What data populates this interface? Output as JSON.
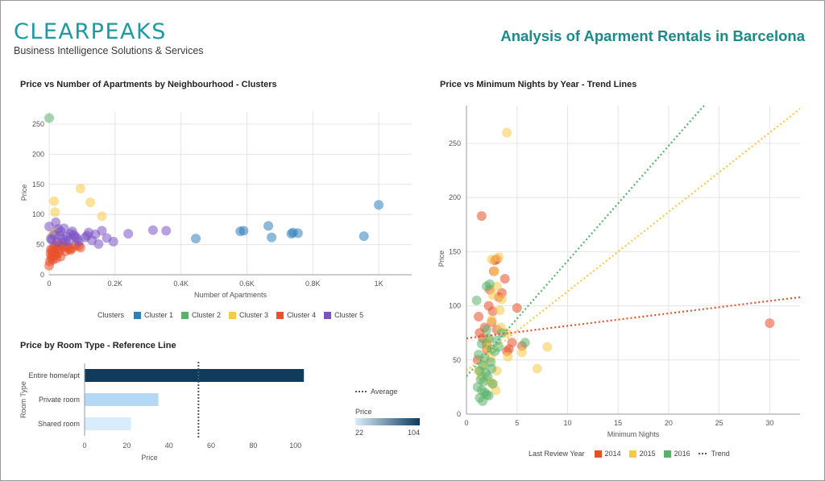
{
  "header": {
    "logo_text": "CLEARPEAKS",
    "logo_tagline": "Business Intelligence Solutions & Services",
    "dashboard_title": "Analysis of Aparment Rentals in Barcelona"
  },
  "colors": {
    "cluster1": "#2f7fbc",
    "cluster2": "#59b26a",
    "cluster3": "#f6c94b",
    "cluster4": "#e8502a",
    "cluster5": "#7b54c4",
    "y2014": "#e8502a",
    "y2015": "#f6c94b",
    "y2016": "#59b26a",
    "bar_dark": "#0f3b5c",
    "bar_light": "#b4d9f4",
    "bar_lighter": "#d9ecfb"
  },
  "chart_data": [
    {
      "type": "scatter",
      "title": "Price vs Number of Apartments by Neighbourhood - Clusters",
      "xlabel": "Number of Apartments",
      "ylabel": "Price",
      "xlim": [
        0,
        1100
      ],
      "ylim": [
        0,
        270
      ],
      "xticks": [
        0,
        200,
        400,
        600,
        800,
        1000
      ],
      "xtick_labels": [
        "0",
        "0.2K",
        "0.4K",
        "0.6K",
        "0.8K",
        "1K"
      ],
      "yticks": [
        0,
        50,
        100,
        150,
        200,
        250
      ],
      "legend_title": "Clusters",
      "series": [
        {
          "name": "Cluster 1",
          "color_key": "cluster1",
          "points": [
            [
              445,
              60
            ],
            [
              580,
              72
            ],
            [
              590,
              73
            ],
            [
              665,
              81
            ],
            [
              675,
              62
            ],
            [
              735,
              68
            ],
            [
              740,
              70
            ],
            [
              755,
              69
            ],
            [
              955,
              64
            ],
            [
              1000,
              116
            ]
          ]
        },
        {
          "name": "Cluster 2",
          "color_key": "cluster2",
          "points": [
            [
              0,
              260
            ]
          ]
        },
        {
          "name": "Cluster 3",
          "color_key": "cluster3",
          "points": [
            [
              10,
              66
            ],
            [
              15,
              122
            ],
            [
              18,
              104
            ],
            [
              95,
              143
            ],
            [
              125,
              120
            ],
            [
              160,
              97
            ],
            [
              22,
              72
            ]
          ]
        },
        {
          "name": "Cluster 4",
          "color_key": "cluster4",
          "points": [
            [
              0,
              15
            ],
            [
              2,
              22
            ],
            [
              4,
              35
            ],
            [
              5,
              42
            ],
            [
              6,
              28
            ],
            [
              8,
              40
            ],
            [
              10,
              31
            ],
            [
              12,
              25
            ],
            [
              14,
              45
            ],
            [
              16,
              38
            ],
            [
              18,
              50
            ],
            [
              20,
              33
            ],
            [
              22,
              27
            ],
            [
              25,
              44
            ],
            [
              28,
              36
            ],
            [
              30,
              48
            ],
            [
              32,
              41
            ],
            [
              35,
              30
            ],
            [
              40,
              52
            ],
            [
              45,
              46
            ],
            [
              50,
              39
            ],
            [
              55,
              47
            ],
            [
              60,
              43
            ],
            [
              65,
              41
            ],
            [
              70,
              44
            ],
            [
              80,
              49
            ],
            [
              90,
              48
            ],
            [
              95,
              45
            ]
          ]
        },
        {
          "name": "Cluster 5",
          "color_key": "cluster5",
          "points": [
            [
              0,
              80
            ],
            [
              5,
              60
            ],
            [
              8,
              58
            ],
            [
              15,
              66
            ],
            [
              20,
              87
            ],
            [
              25,
              54
            ],
            [
              28,
              76
            ],
            [
              32,
              65
            ],
            [
              35,
              72
            ],
            [
              40,
              60
            ],
            [
              45,
              77
            ],
            [
              50,
              55
            ],
            [
              55,
              63
            ],
            [
              60,
              57
            ],
            [
              65,
              68
            ],
            [
              70,
              72
            ],
            [
              75,
              66
            ],
            [
              80,
              63
            ],
            [
              85,
              60
            ],
            [
              90,
              55
            ],
            [
              110,
              62
            ],
            [
              115,
              65
            ],
            [
              120,
              70
            ],
            [
              130,
              57
            ],
            [
              140,
              67
            ],
            [
              150,
              51
            ],
            [
              160,
              73
            ],
            [
              175,
              61
            ],
            [
              195,
              55
            ],
            [
              240,
              68
            ],
            [
              315,
              74
            ],
            [
              355,
              73
            ]
          ]
        }
      ]
    },
    {
      "type": "scatter",
      "title": "Price vs Minimum Nights by Year - Trend Lines",
      "xlabel": "Minimum Nights",
      "ylabel": "Price",
      "xlim": [
        0,
        33
      ],
      "ylim": [
        0,
        285
      ],
      "xticks": [
        0,
        5,
        10,
        15,
        20,
        25,
        30
      ],
      "yticks": [
        0,
        50,
        100,
        150,
        200,
        250
      ],
      "legend_title": "Last Review Year",
      "trend_label": "Trend",
      "series": [
        {
          "name": "2014",
          "color_key": "y2014",
          "points": [
            [
              1.5,
              183
            ],
            [
              2,
              65
            ],
            [
              2.2,
              100
            ],
            [
              2.3,
              115
            ],
            [
              2.5,
              85
            ],
            [
              2.8,
              142
            ],
            [
              3.0,
              143
            ],
            [
              2.6,
              95
            ],
            [
              3.2,
              108
            ],
            [
              3.5,
              112
            ],
            [
              3.8,
              125
            ],
            [
              4.0,
              58
            ],
            [
              4.2,
              60
            ],
            [
              5.0,
              98
            ],
            [
              5.5,
              63
            ],
            [
              1.2,
              90
            ],
            [
              1.8,
              80
            ],
            [
              1.3,
              75
            ],
            [
              2.0,
              60
            ],
            [
              1.6,
              70
            ],
            [
              1.1,
              50
            ],
            [
              30,
              84
            ],
            [
              3.0,
              78
            ],
            [
              4.5,
              66
            ],
            [
              2.7,
              132
            ]
          ],
          "trend": [
            [
              0,
              70
            ],
            [
              33,
              108
            ]
          ]
        },
        {
          "name": "2015",
          "color_key": "y2015",
          "points": [
            [
              4,
              260
            ],
            [
              2.5,
              143
            ],
            [
              3.2,
              145
            ],
            [
              2.8,
              132
            ],
            [
              2.6,
              110
            ],
            [
              3.0,
              118
            ],
            [
              3.5,
              106
            ],
            [
              3.3,
              96
            ],
            [
              2.5,
              87
            ],
            [
              3.4,
              80
            ],
            [
              4.0,
              75
            ],
            [
              2.2,
              68
            ],
            [
              2.0,
              62
            ],
            [
              8.0,
              62
            ],
            [
              7,
              42
            ],
            [
              5.5,
              57
            ],
            [
              2.3,
              30
            ],
            [
              2.6,
              28
            ],
            [
              3.0,
              40
            ],
            [
              2.4,
              52
            ],
            [
              1.8,
              45
            ],
            [
              1.5,
              35
            ],
            [
              1.2,
              40
            ],
            [
              2.9,
              22
            ],
            [
              4.1,
              53
            ]
          ],
          "trend": [
            [
              0,
              40
            ],
            [
              33,
              282
            ]
          ]
        },
        {
          "name": "2016",
          "color_key": "y2016",
          "points": [
            [
              1,
              105
            ],
            [
              2,
              118
            ],
            [
              2.3,
              120
            ],
            [
              1.5,
              65
            ],
            [
              2,
              78
            ],
            [
              2.2,
              70
            ],
            [
              2.5,
              60
            ],
            [
              1.2,
              55
            ],
            [
              1.8,
              52
            ],
            [
              2.4,
              48
            ],
            [
              1.6,
              45
            ],
            [
              1.3,
              40
            ],
            [
              1.9,
              38
            ],
            [
              2.1,
              35
            ],
            [
              1.4,
              32
            ],
            [
              1.7,
              30
            ],
            [
              2.6,
              28
            ],
            [
              1.1,
              25
            ],
            [
              1.5,
              22
            ],
            [
              1.8,
              20
            ],
            [
              2.0,
              18
            ],
            [
              2.2,
              17
            ],
            [
              1.3,
              15
            ],
            [
              2.5,
              42
            ],
            [
              2.8,
              58
            ],
            [
              3.2,
              62
            ],
            [
              3.5,
              75
            ],
            [
              3.0,
              68
            ],
            [
              5.8,
              66
            ],
            [
              1.6,
              12
            ]
          ],
          "trend": [
            [
              0,
              35
            ],
            [
              23.5,
              285
            ]
          ]
        }
      ]
    },
    {
      "type": "bar",
      "orientation": "horizontal",
      "title": "Price by Room Type - Reference Line",
      "ylabel": "Room Type",
      "xlabel": "Price",
      "categories": [
        "Entire home/apt",
        "Private room",
        "Shared room"
      ],
      "values": [
        104,
        35,
        22
      ],
      "xlim": [
        0,
        115
      ],
      "xticks": [
        0,
        20,
        40,
        60,
        80,
        100
      ],
      "reference_line": {
        "label": "Average",
        "value": 54
      },
      "color_legend": {
        "title": "Price",
        "min_label": "22",
        "max_label": "104"
      }
    }
  ]
}
